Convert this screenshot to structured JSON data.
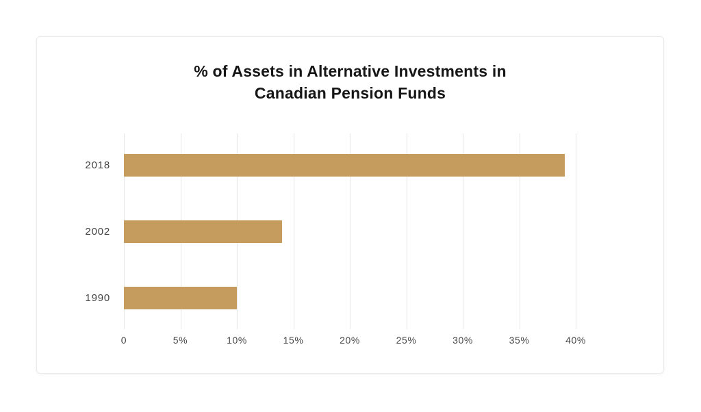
{
  "chart_data": {
    "type": "bar",
    "orientation": "horizontal",
    "title": "% of Assets in Alternative Investments in Canadian Pension Funds",
    "title_lines": [
      "% of Assets in Alternative Investments in",
      "Canadian Pension Funds"
    ],
    "categories": [
      "2018",
      "2002",
      "1990"
    ],
    "values": [
      39,
      14,
      10
    ],
    "unit": "%",
    "xlabel": "",
    "ylabel": "",
    "xlim": [
      0,
      40
    ],
    "x_tick_labels": [
      "0",
      "5%",
      "10%",
      "15%",
      "20%",
      "25%",
      "30%",
      "35%",
      "40%"
    ],
    "grid": "vertical-only",
    "legend": "none"
  },
  "colors": {
    "bar": "#C69C5E",
    "gridline": "#E7E7E7",
    "title_text": "#161616",
    "category_text": "#414141",
    "tick_text": "#474747",
    "card_border": "#EAEAEA",
    "card_background": "#FFFFFF",
    "page_background": "#FFFFFF"
  }
}
